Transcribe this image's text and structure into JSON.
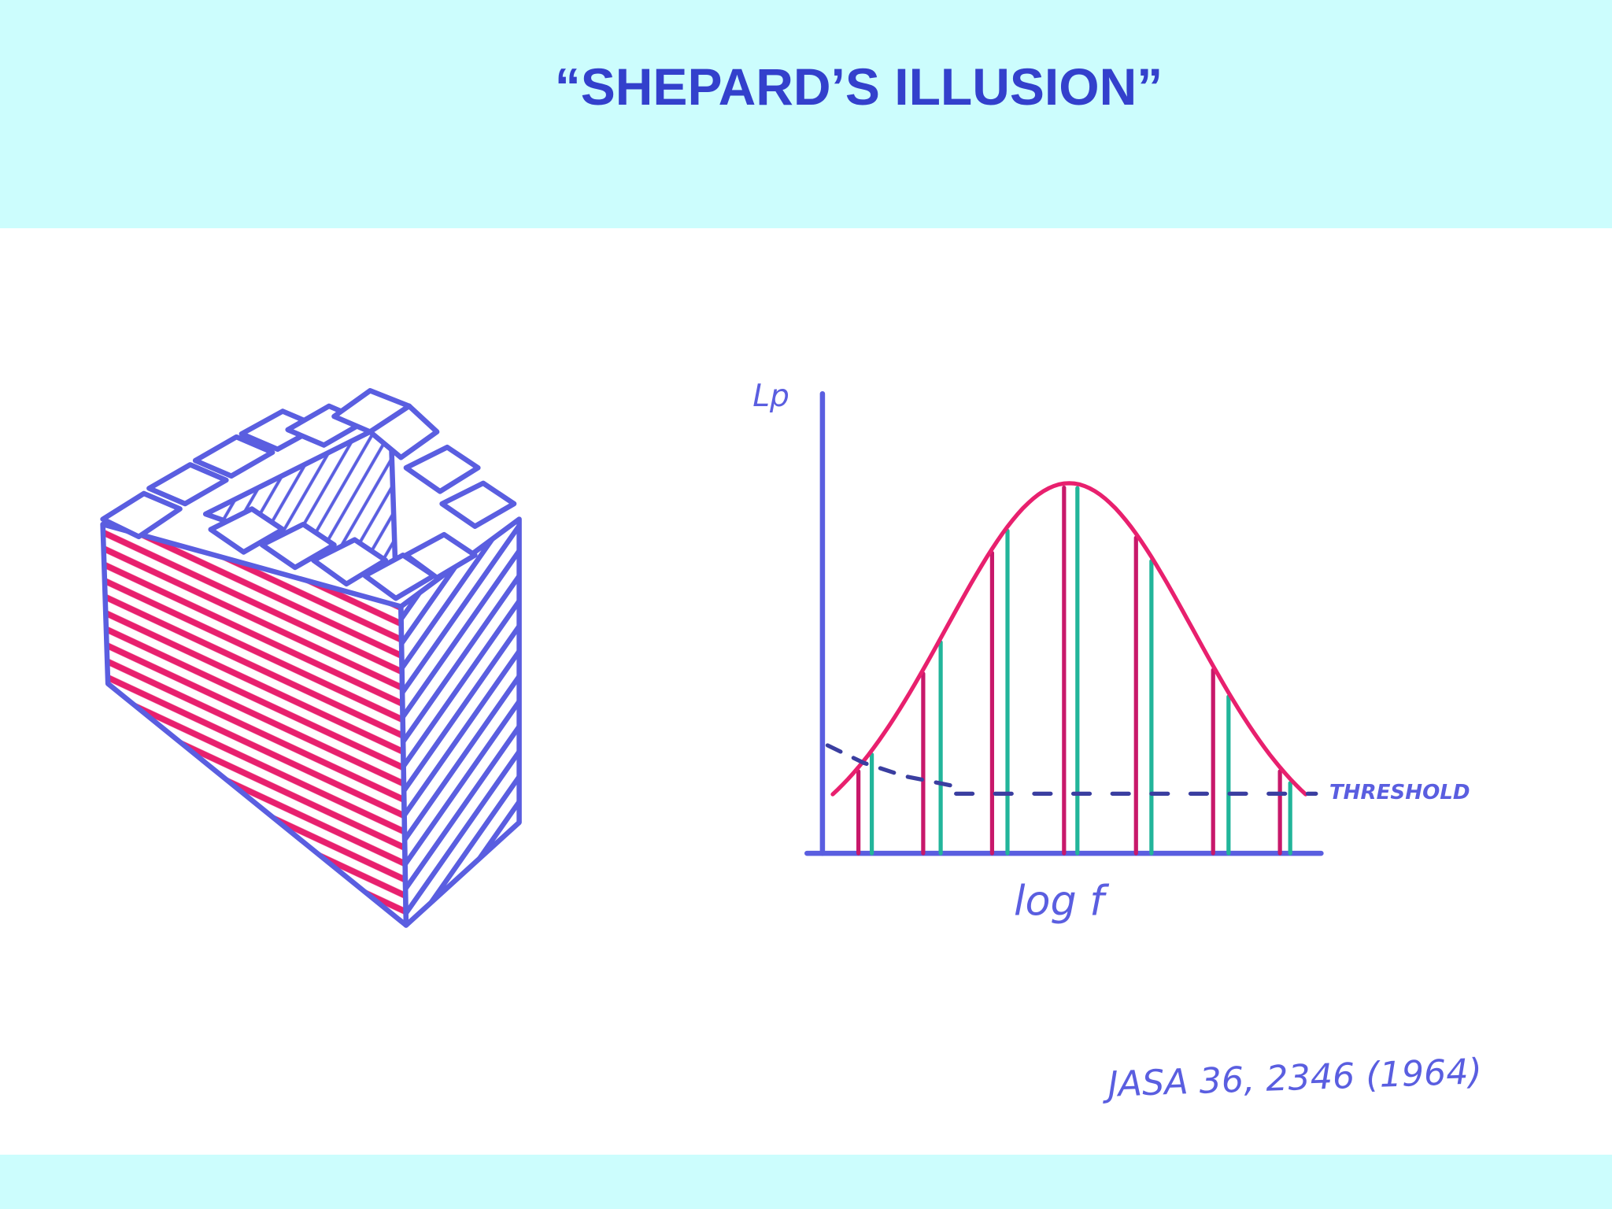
{
  "header": {
    "title": "“SHEPARD’S ILLUSION”"
  },
  "figure": {
    "y_axis_label": "Lp",
    "x_axis_label": "log f",
    "threshold_label": "THRESHOLD"
  },
  "citation": "JASA 36, 2346 (1964)"
}
